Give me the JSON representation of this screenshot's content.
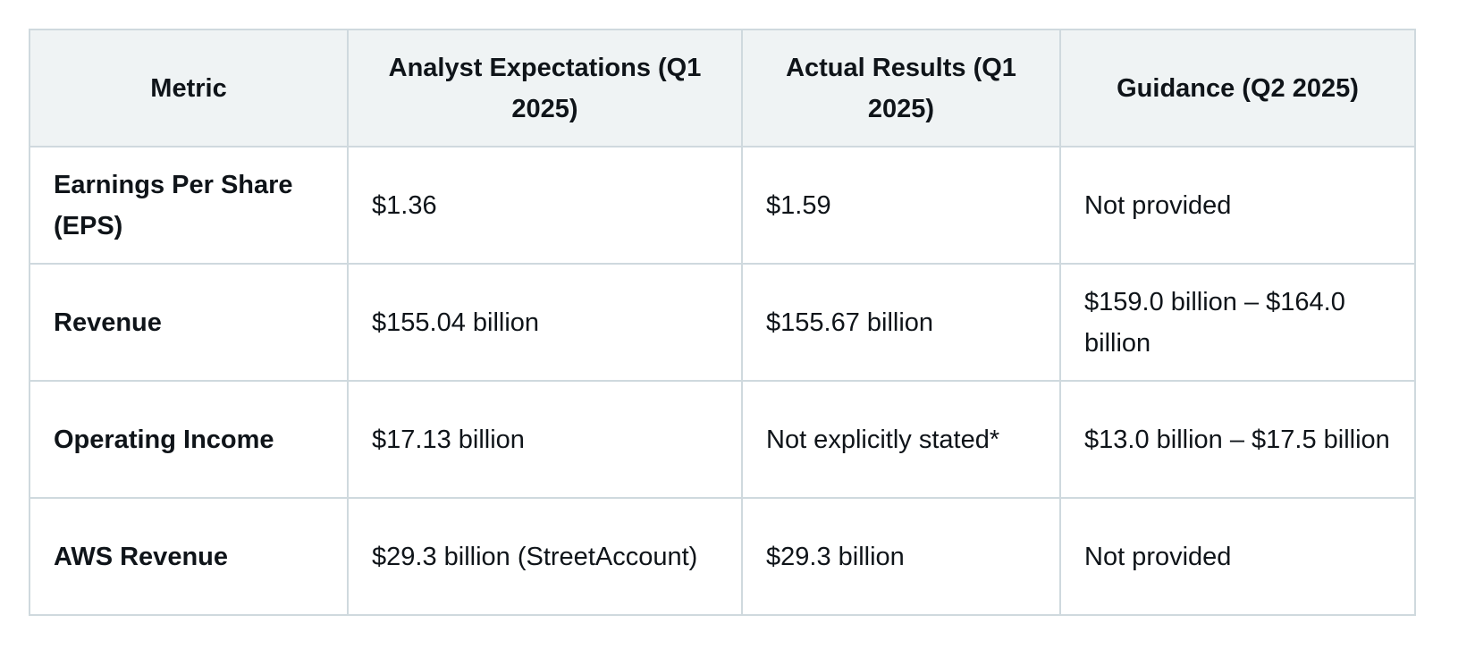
{
  "table": {
    "headers": [
      "Metric",
      "Analyst Expectations (Q1 2025)",
      "Actual Results (Q1 2025)",
      "Guidance (Q2 2025)"
    ],
    "rows": [
      [
        "Earnings Per Share (EPS)",
        "$1.36",
        "$1.59",
        "Not provided"
      ],
      [
        "Revenue",
        "$155.04 billion",
        "$155.67 billion",
        "$159.0 billion – $164.0 billion"
      ],
      [
        "Operating Income",
        "$17.13 billion",
        "Not explicitly stated*",
        "$13.0 billion – $17.5 billion"
      ],
      [
        "AWS Revenue",
        "$29.3 billion (StreetAccount)",
        "$29.3 billion",
        "Not provided"
      ]
    ]
  }
}
